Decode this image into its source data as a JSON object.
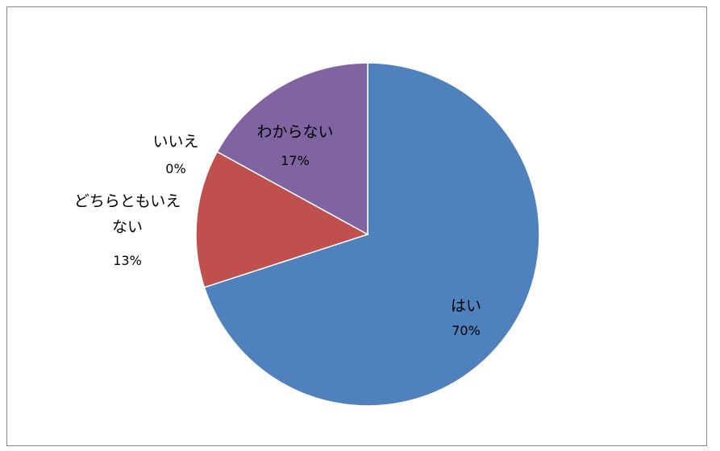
{
  "chart_data": {
    "type": "pie",
    "title": "",
    "start_angle_deg": 0,
    "direction": "clockwise",
    "slices": [
      {
        "label": "はい",
        "label_lines": [
          "はい"
        ],
        "pct_text": "70%",
        "value": 70,
        "color": "#4F81BD"
      },
      {
        "label": "どちらともいえない",
        "label_lines": [
          "どちらともいえ",
          "ない"
        ],
        "pct_text": "13%",
        "value": 13,
        "color": "#C0504D"
      },
      {
        "label": "いいえ",
        "label_lines": [
          "いいえ"
        ],
        "pct_text": "0%",
        "value": 0,
        "color": "#9BBB59"
      },
      {
        "label": "わからない",
        "label_lines": [
          "わからない"
        ],
        "pct_text": "17%",
        "value": 17,
        "color": "#8064A2"
      }
    ],
    "legend": "none",
    "data_labels": "category and percentage"
  }
}
